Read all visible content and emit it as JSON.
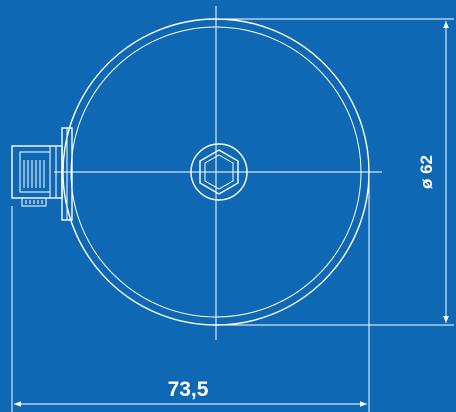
{
  "drawing": {
    "background_color": "#0f68b3",
    "line_color": "#ffffff",
    "dimensions": {
      "overall_width": "73,5",
      "diameter": "ø 62"
    }
  }
}
